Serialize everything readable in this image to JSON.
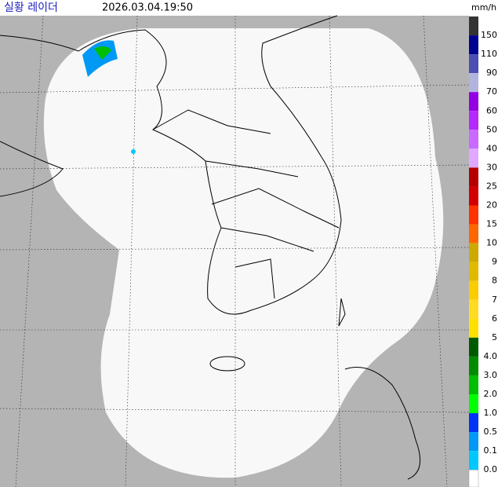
{
  "header": {
    "title": "실황 레이더",
    "timestamp": "2026.03.04.19:50",
    "unit": "mm/h"
  },
  "legend": {
    "items": [
      {
        "label": "150",
        "color": "#333333"
      },
      {
        "label": "110",
        "color": "#000390"
      },
      {
        "label": "90",
        "color": "#4c4eb1"
      },
      {
        "label": "70",
        "color": "#b3b4de"
      },
      {
        "label": "60",
        "color": "#9300e4"
      },
      {
        "label": "50",
        "color": "#b329ff"
      },
      {
        "label": "40",
        "color": "#c969ff"
      },
      {
        "label": "30",
        "color": "#e0a9ff"
      },
      {
        "label": "25",
        "color": "#b40000"
      },
      {
        "label": "20",
        "color": "#d20000"
      },
      {
        "label": "15",
        "color": "#ff3200"
      },
      {
        "label": "10",
        "color": "#ff6600"
      },
      {
        "label": "9",
        "color": "#ccaa00"
      },
      {
        "label": "8",
        "color": "#e0b900"
      },
      {
        "label": "7",
        "color": "#f9cd00"
      },
      {
        "label": "6",
        "color": "#ffdc1f"
      },
      {
        "label": "5",
        "color": "#ffe100"
      },
      {
        "label": "4.0",
        "color": "#005a00"
      },
      {
        "label": "3.0",
        "color": "#008c00"
      },
      {
        "label": "2.0",
        "color": "#00be00"
      },
      {
        "label": "1.0",
        "color": "#00ff00"
      },
      {
        "label": "0.5",
        "color": "#0033f5"
      },
      {
        "label": "0.1",
        "color": "#0099f5"
      },
      {
        "label": "0.0",
        "color": "#00c8ff"
      }
    ]
  }
}
